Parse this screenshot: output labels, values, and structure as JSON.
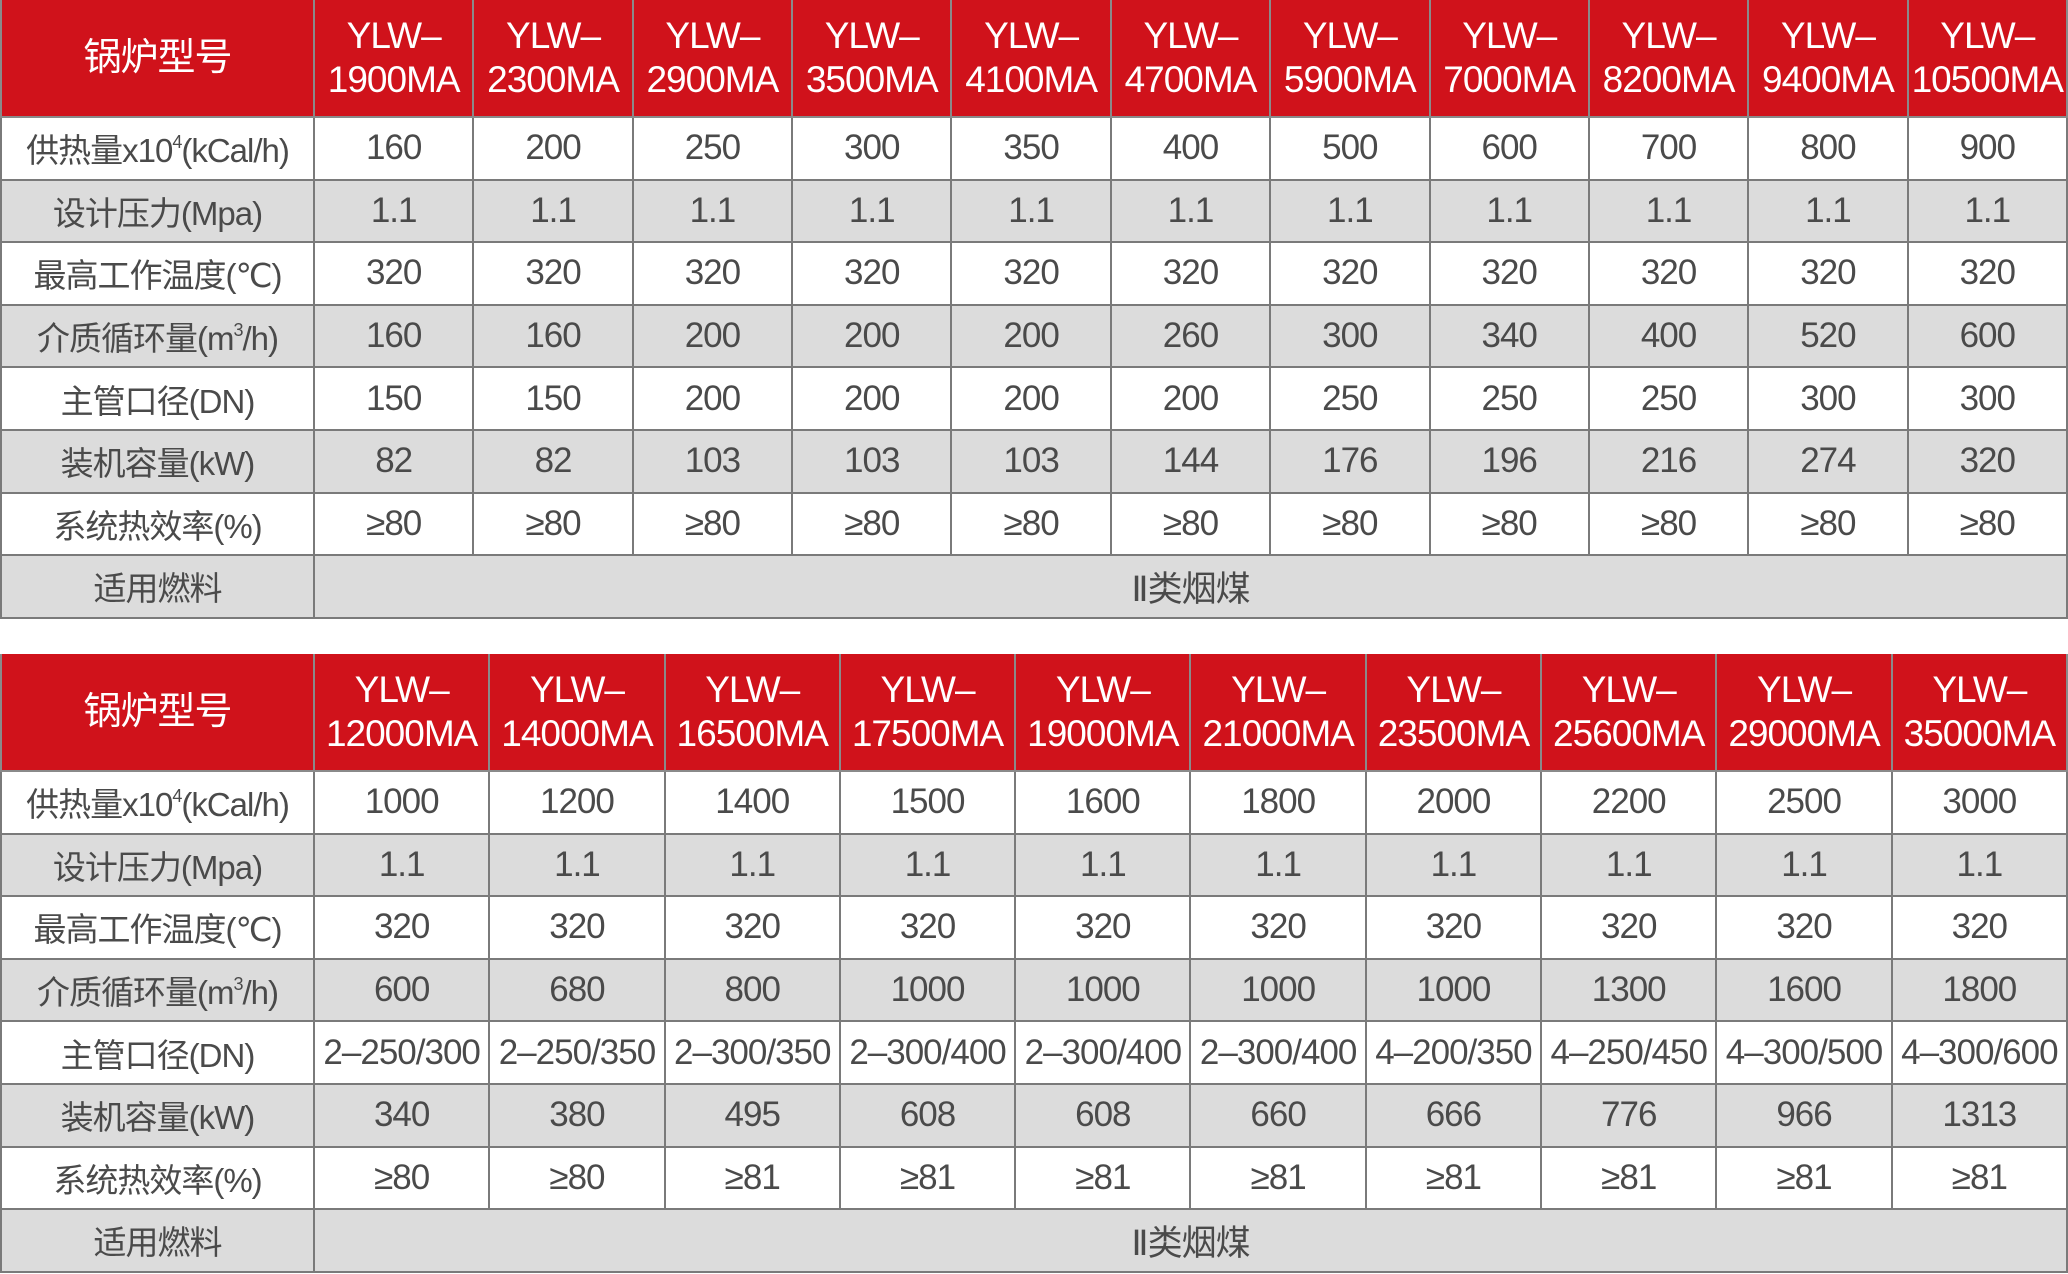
{
  "colors": {
    "header": "#d0121b",
    "stripe": "#dcdcdc",
    "text": "#4a4a4a"
  },
  "row_labels": {
    "model": "锅炉型号",
    "heat_pre": "供热量x10",
    "heat_sup": "4",
    "heat_post": "(kCal/h)",
    "pressure": "设计压力(Mpa)",
    "temp": "最高工作温度(℃)",
    "flow_pre": "介质循环量(m",
    "flow_sup": "3",
    "flow_post": "/h)",
    "pipe": "主管口径(DN)",
    "power": "装机容量(kW)",
    "eff": "系统热效率(%)",
    "fuel": "适用燃料"
  },
  "tables": [
    {
      "models": [
        "1900MA",
        "2300MA",
        "2900MA",
        "3500MA",
        "4100MA",
        "4700MA",
        "5900MA",
        "7000MA",
        "8200MA",
        "9400MA",
        "10500MA"
      ],
      "model_prefix": "YLW–",
      "heat": [
        "160",
        "200",
        "250",
        "300",
        "350",
        "400",
        "500",
        "600",
        "700",
        "800",
        "900"
      ],
      "pressure": [
        "1.1",
        "1.1",
        "1.1",
        "1.1",
        "1.1",
        "1.1",
        "1.1",
        "1.1",
        "1.1",
        "1.1",
        "1.1"
      ],
      "temp": [
        "320",
        "320",
        "320",
        "320",
        "320",
        "320",
        "320",
        "320",
        "320",
        "320",
        "320"
      ],
      "flow": [
        "160",
        "160",
        "200",
        "200",
        "200",
        "260",
        "300",
        "340",
        "400",
        "520",
        "600"
      ],
      "pipe": [
        "150",
        "150",
        "200",
        "200",
        "200",
        "200",
        "250",
        "250",
        "250",
        "300",
        "300"
      ],
      "power": [
        "82",
        "82",
        "103",
        "103",
        "103",
        "144",
        "176",
        "196",
        "216",
        "274",
        "320"
      ],
      "eff": [
        "≥80",
        "≥80",
        "≥80",
        "≥80",
        "≥80",
        "≥80",
        "≥80",
        "≥80",
        "≥80",
        "≥80",
        "≥80"
      ],
      "fuel": "Ⅱ类烟煤"
    },
    {
      "models": [
        "12000MA",
        "14000MA",
        "16500MA",
        "17500MA",
        "19000MA",
        "21000MA",
        "23500MA",
        "25600MA",
        "29000MA",
        "35000MA"
      ],
      "model_prefix": "YLW–",
      "heat": [
        "1000",
        "1200",
        "1400",
        "1500",
        "1600",
        "1800",
        "2000",
        "2200",
        "2500",
        "3000"
      ],
      "pressure": [
        "1.1",
        "1.1",
        "1.1",
        "1.1",
        "1.1",
        "1.1",
        "1.1",
        "1.1",
        "1.1",
        "1.1"
      ],
      "temp": [
        "320",
        "320",
        "320",
        "320",
        "320",
        "320",
        "320",
        "320",
        "320",
        "320"
      ],
      "flow": [
        "600",
        "680",
        "800",
        "1000",
        "1000",
        "1000",
        "1000",
        "1300",
        "1600",
        "1800"
      ],
      "pipe": [
        "2–250/300",
        "2–250/350",
        "2–300/350",
        "2–300/400",
        "2–300/400",
        "2–300/400",
        "4–200/350",
        "4–250/450",
        "4–300/500",
        "4–300/600"
      ],
      "power": [
        "340",
        "380",
        "495",
        "608",
        "608",
        "660",
        "666",
        "776",
        "966",
        "1313"
      ],
      "eff": [
        "≥80",
        "≥80",
        "≥81",
        "≥81",
        "≥81",
        "≥81",
        "≥81",
        "≥81",
        "≥81",
        "≥81"
      ],
      "fuel": "Ⅱ类烟煤"
    }
  ]
}
